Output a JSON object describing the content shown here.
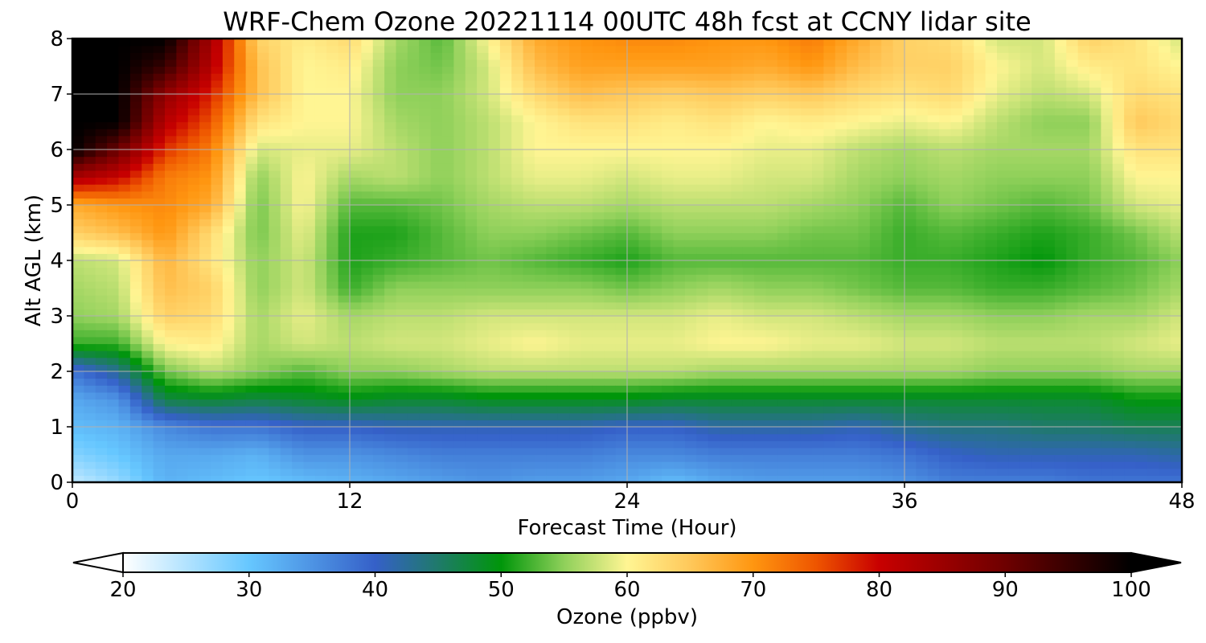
{
  "chart_data": {
    "type": "heatmap",
    "title": "WRF-Chem Ozone  20221114 00UTC 48h fcst at CCNY lidar site",
    "xlabel": "Forecast Time (Hour)",
    "ylabel": "Alt AGL (km)",
    "xlim": [
      0,
      48
    ],
    "ylim": [
      0,
      8
    ],
    "x_ticks": [
      "0",
      "12",
      "24",
      "36",
      "48"
    ],
    "y_ticks": [
      "0",
      "1",
      "2",
      "3",
      "4",
      "5",
      "6",
      "7",
      "8"
    ],
    "grid": true,
    "colorbar": {
      "label": "Ozone  (ppbv)",
      "range": [
        20,
        100
      ],
      "ticks": [
        "20",
        "30",
        "40",
        "50",
        "60",
        "70",
        "80",
        "90",
        "100"
      ],
      "extend": "both",
      "colors": [
        [
          20,
          "#ffffff"
        ],
        [
          30,
          "#66c7ff"
        ],
        [
          40,
          "#3560c8"
        ],
        [
          45,
          "#1f7a6a"
        ],
        [
          50,
          "#00960a"
        ],
        [
          55,
          "#8fd05a"
        ],
        [
          60,
          "#fff593"
        ],
        [
          65,
          "#ffc85a"
        ],
        [
          70,
          "#ff9610"
        ],
        [
          75,
          "#ee5500"
        ],
        [
          80,
          "#c80000"
        ],
        [
          90,
          "#6e0000"
        ],
        [
          100,
          "#000000"
        ]
      ]
    },
    "heights_km": [
      0,
      0.5,
      1,
      1.5,
      2,
      2.5,
      3,
      3.5,
      4,
      4.5,
      5,
      5.5,
      6,
      6.5,
      7,
      7.5,
      8
    ],
    "columns": [
      {
        "hour": 0,
        "ozone_ppbv": [
          24,
          28,
          31,
          33,
          38,
          52,
          55,
          56,
          57,
          64,
          68,
          83,
          100,
          100,
          100,
          100,
          100
        ]
      },
      {
        "hour": 2,
        "ozone_ppbv": [
          27,
          30,
          32,
          35,
          43,
          52,
          56,
          57,
          58,
          66,
          70,
          80,
          90,
          100,
          100,
          100,
          100
        ]
      },
      {
        "hour": 4,
        "ozone_ppbv": [
          32,
          33,
          36,
          47,
          54,
          60,
          64,
          66,
          67,
          70,
          71,
          72,
          77,
          82,
          86,
          95,
          100
        ]
      },
      {
        "hour": 6,
        "ozone_ppbv": [
          31,
          33,
          38,
          48,
          57,
          61,
          63,
          64,
          62,
          63,
          68,
          70,
          72,
          75,
          78,
          82,
          84
        ]
      },
      {
        "hour": 8,
        "ozone_ppbv": [
          30,
          32,
          38,
          47,
          55,
          56,
          56,
          55,
          55,
          54,
          54,
          55,
          58,
          62,
          66,
          66,
          64
        ]
      },
      {
        "hour": 10,
        "ozone_ppbv": [
          31,
          35,
          40,
          48,
          53,
          58,
          59,
          58,
          58,
          59,
          60,
          60,
          59,
          60,
          60,
          60,
          61
        ]
      },
      {
        "hour": 12,
        "ozone_ppbv": [
          32,
          35,
          40,
          49,
          55,
          57,
          56,
          52,
          51,
          51,
          53,
          56,
          59,
          60,
          60,
          61,
          63
        ]
      },
      {
        "hour": 14,
        "ozone_ppbv": [
          33,
          36,
          41,
          48,
          55,
          58,
          57,
          55,
          52,
          51,
          53,
          57,
          57,
          56,
          55,
          55,
          56
        ]
      },
      {
        "hour": 16,
        "ozone_ppbv": [
          34,
          37,
          41,
          48,
          56,
          58,
          57,
          55,
          53,
          53,
          54,
          55,
          55,
          55,
          55,
          54,
          53
        ]
      },
      {
        "hour": 18,
        "ozone_ppbv": [
          35,
          37,
          41,
          49,
          57,
          59,
          58,
          55,
          54,
          55,
          56,
          57,
          57,
          57,
          58,
          58,
          60
        ]
      },
      {
        "hour": 20,
        "ozone_ppbv": [
          34,
          37,
          41,
          49,
          57,
          60,
          58,
          55,
          53,
          55,
          57,
          59,
          60,
          60,
          63,
          66,
          68
        ]
      },
      {
        "hour": 22,
        "ozone_ppbv": [
          34,
          37,
          41,
          49,
          57,
          59,
          58,
          55,
          52,
          54,
          57,
          59,
          60,
          62,
          66,
          69,
          70
        ]
      },
      {
        "hour": 24,
        "ozone_ppbv": [
          33,
          36,
          40,
          49,
          57,
          59,
          58,
          54,
          51,
          53,
          56,
          58,
          60,
          62,
          65,
          69,
          71
        ]
      },
      {
        "hour": 26,
        "ozone_ppbv": [
          31,
          36,
          40,
          48,
          57,
          59,
          58,
          55,
          53,
          55,
          57,
          59,
          60,
          61,
          64,
          69,
          71
        ]
      },
      {
        "hour": 28,
        "ozone_ppbv": [
          33,
          37,
          42,
          48,
          56,
          60,
          59,
          56,
          53,
          55,
          57,
          59,
          60,
          62,
          65,
          69,
          70
        ]
      },
      {
        "hour": 30,
        "ozone_ppbv": [
          34,
          37,
          42,
          48,
          56,
          60,
          58,
          55,
          53,
          55,
          57,
          58,
          59,
          60,
          64,
          68,
          70
        ]
      },
      {
        "hour": 32,
        "ozone_ppbv": [
          34,
          37,
          42,
          48,
          56,
          59,
          58,
          55,
          53,
          54,
          56,
          58,
          59,
          61,
          65,
          70,
          72
        ]
      },
      {
        "hour": 34,
        "ozone_ppbv": [
          34,
          37,
          41,
          48,
          56,
          59,
          57,
          54,
          53,
          54,
          55,
          56,
          57,
          60,
          63,
          66,
          68
        ]
      },
      {
        "hour": 36,
        "ozone_ppbv": [
          35,
          38,
          43,
          48,
          56,
          58,
          56,
          53,
          52,
          52,
          53,
          55,
          56,
          59,
          62,
          64,
          64
        ]
      },
      {
        "hour": 38,
        "ozone_ppbv": [
          37,
          40,
          44,
          48,
          56,
          58,
          56,
          53,
          52,
          53,
          55,
          56,
          57,
          60,
          63,
          64,
          63
        ]
      },
      {
        "hour": 40,
        "ozone_ppbv": [
          37,
          41,
          44,
          48,
          55,
          57,
          55,
          52,
          51,
          52,
          54,
          55,
          56,
          57,
          59,
          60,
          58
        ]
      },
      {
        "hour": 42,
        "ozone_ppbv": [
          37,
          41,
          45,
          48,
          55,
          57,
          55,
          52,
          50,
          51,
          53,
          55,
          56,
          55,
          57,
          58,
          58
        ]
      },
      {
        "hour": 44,
        "ozone_ppbv": [
          38,
          41,
          45,
          48,
          55,
          57,
          56,
          53,
          52,
          52,
          54,
          55,
          56,
          55,
          58,
          61,
          64
        ]
      },
      {
        "hour": 46,
        "ozone_ppbv": [
          38,
          41,
          46,
          50,
          56,
          58,
          56,
          54,
          53,
          54,
          58,
          60,
          62,
          65,
          63,
          62,
          62
        ]
      },
      {
        "hour": 48,
        "ozone_ppbv": [
          38,
          42,
          46,
          50,
          56,
          59,
          58,
          56,
          55,
          57,
          59,
          60,
          62,
          63,
          62,
          60,
          58
        ]
      }
    ]
  }
}
